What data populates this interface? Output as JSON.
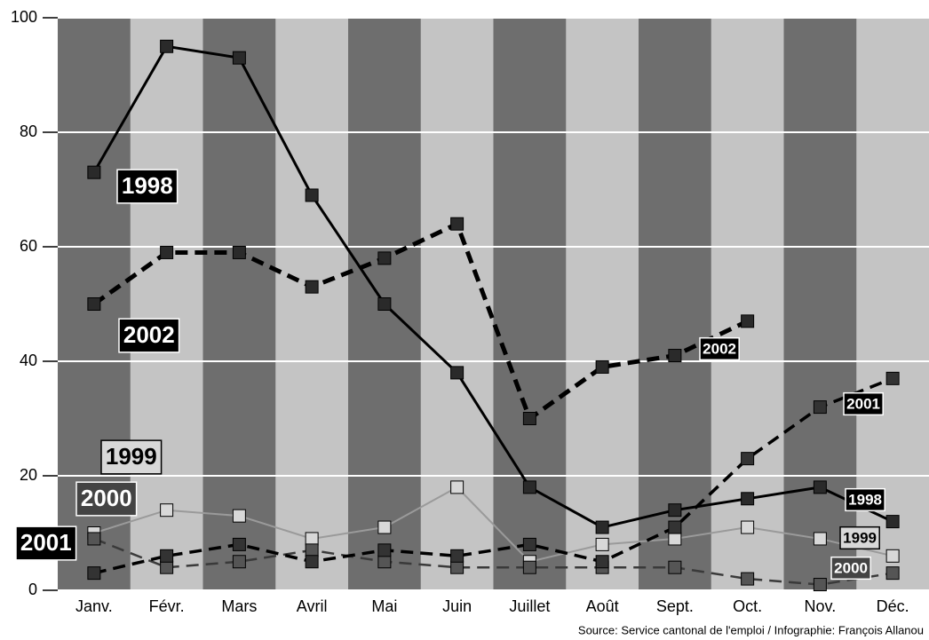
{
  "chart_data": {
    "type": "line",
    "categories": [
      "Janv.",
      "Févr.",
      "Mars",
      "Avril",
      "Mai",
      "Juin",
      "Juillet",
      "Août",
      "Sept.",
      "Oct.",
      "Nov.",
      "Déc."
    ],
    "series": [
      {
        "name": "1998",
        "color": "#000000",
        "marker_color": "#2a2a2a",
        "dashed": false,
        "values": [
          73,
          95,
          93,
          69,
          50,
          38,
          18,
          11,
          14,
          16,
          18,
          12
        ]
      },
      {
        "name": "2002",
        "color": "#000000",
        "marker_color": "#2a2a2a",
        "dashed": true,
        "values": [
          50,
          59,
          59,
          53,
          58,
          64,
          30,
          39,
          41,
          47,
          null,
          null
        ]
      },
      {
        "name": "1999",
        "color": "#9a9a9a",
        "marker_color": "#d8d8d8",
        "dashed": false,
        "values": [
          10,
          14,
          13,
          9,
          11,
          18,
          5,
          8,
          9,
          11,
          9,
          6
        ]
      },
      {
        "name": "2000",
        "color": "#3a3a3a",
        "marker_color": "#555555",
        "dashed": true,
        "values": [
          9,
          4,
          5,
          7,
          5,
          4,
          4,
          4,
          4,
          2,
          1,
          3
        ]
      },
      {
        "name": "2001",
        "color": "#000000",
        "marker_color": "#333333",
        "dashed": true,
        "values": [
          3,
          6,
          8,
          5,
          7,
          6,
          8,
          5,
          11,
          23,
          32,
          37
        ]
      }
    ],
    "ylim": [
      0,
      100
    ],
    "yticks": [
      0,
      20,
      40,
      60,
      80,
      100
    ],
    "grid": true,
    "source": "Source: Service cantonal de l'emploi / Infographie: François Allanou"
  }
}
